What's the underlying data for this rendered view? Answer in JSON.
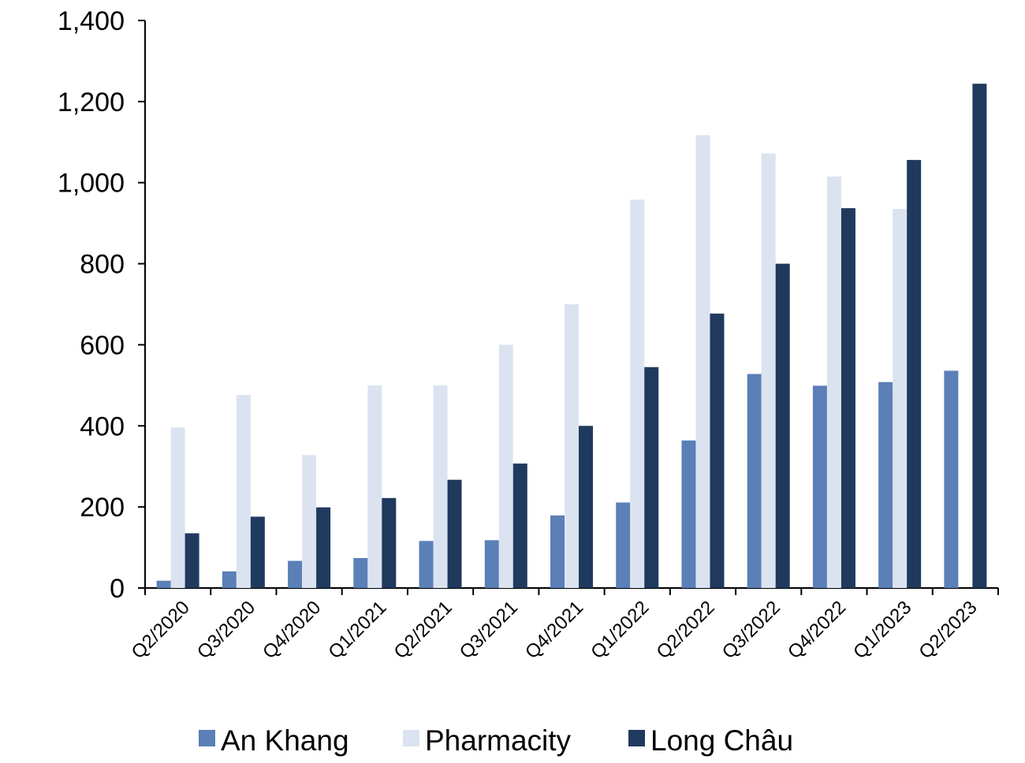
{
  "chart_data": {
    "type": "bar",
    "title": "",
    "xlabel": "",
    "ylabel": "",
    "ylim": [
      0,
      1400
    ],
    "yticks": [
      0,
      200,
      400,
      600,
      800,
      1000,
      1200,
      1400
    ],
    "ytick_labels": [
      "0",
      "200",
      "400",
      "600",
      "800",
      "1,000",
      "1,200",
      "1,400"
    ],
    "grid": false,
    "legend_position": "bottom",
    "categories": [
      "Q2/2020",
      "Q3/2020",
      "Q4/2020",
      "Q1/2021",
      "Q2/2021",
      "Q3/2021",
      "Q4/2021",
      "Q1/2022",
      "Q2/2022",
      "Q3/2022",
      "Q4/2022",
      "Q1/2023",
      "Q2/2023"
    ],
    "series": [
      {
        "name": "An Khang",
        "color": "#5b7fb7",
        "values": [
          18,
          41,
          67,
          74,
          116,
          118,
          179,
          211,
          364,
          528,
          499,
          508,
          536
        ]
      },
      {
        "name": "Pharmacity",
        "color": "#dbe3f1",
        "values": [
          396,
          476,
          328,
          500,
          500,
          600,
          700,
          958,
          1117,
          1072,
          1015,
          935,
          null
        ]
      },
      {
        "name": "Long Châu",
        "color": "#203a5e",
        "values": [
          135,
          176,
          199,
          222,
          267,
          307,
          400,
          545,
          677,
          800,
          937,
          1056,
          1244
        ]
      }
    ]
  }
}
